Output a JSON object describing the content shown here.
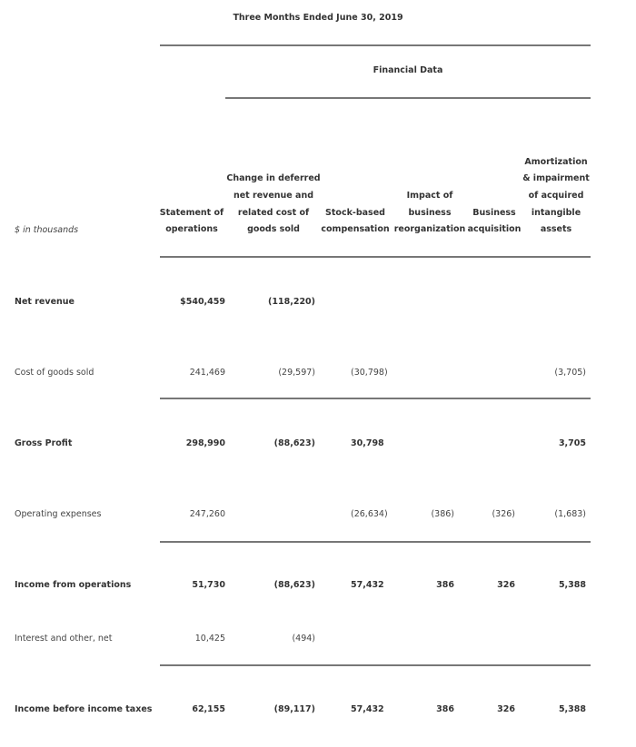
{
  "title": "Three Months Ended June 30, 2019",
  "subtitle": "Financial Data",
  "units_label": "$ in thousands",
  "columns": [
    [
      "Statement of",
      "operations"
    ],
    [
      "Change in deferred",
      "net revenue and",
      "related cost of",
      "goods sold"
    ],
    [
      "Stock-based",
      "compensation"
    ],
    [
      "Impact of",
      "business",
      "reorganization"
    ],
    [
      "Business",
      "acquisition"
    ],
    [
      "Amortization",
      "& impairment",
      "of acquired",
      "intangible",
      "assets"
    ]
  ],
  "rows": [
    {
      "label": "Net revenue",
      "bold": true,
      "values": [
        "$540,459",
        "(118,220)",
        "",
        "",
        "",
        ""
      ]
    },
    {
      "label": "Cost of goods sold",
      "bold": false,
      "values": [
        "241,469",
        "(29,597)",
        "(30,798)",
        "",
        "",
        "(3,705)"
      ]
    },
    {
      "label": "Gross Profit",
      "bold": true,
      "values": [
        "298,990",
        "(88,623)",
        "30,798",
        "",
        "",
        "3,705"
      ]
    },
    {
      "label": "Operating expenses",
      "bold": false,
      "values": [
        "247,260",
        "",
        "(26,634)",
        "(386)",
        "(326)",
        "(1,683)"
      ]
    },
    {
      "label": "Income from operations",
      "bold": true,
      "values": [
        "51,730",
        "(88,623)",
        "57,432",
        "386",
        "326",
        "5,388"
      ]
    },
    {
      "label": "Interest and other, net",
      "bold": false,
      "values": [
        "10,425",
        "(494)",
        "",
        "",
        "",
        ""
      ]
    },
    {
      "label": "Income before income taxes",
      "bold": true,
      "values": [
        "62,155",
        "(89,117)",
        "57,432",
        "386",
        "326",
        "5,388"
      ]
    }
  ]
}
